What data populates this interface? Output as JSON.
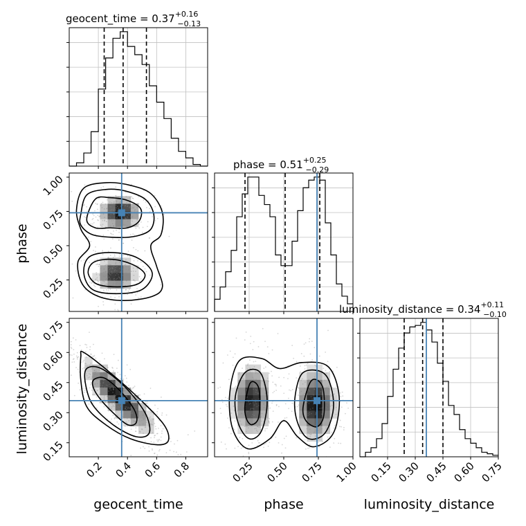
{
  "chart_data": {
    "type": "corner",
    "parameters": [
      "geocent_time",
      "phase",
      "luminosity_distance"
    ],
    "truths": {
      "geocent_time": 0.36,
      "phase": 0.74,
      "luminosity_distance": 0.36
    },
    "colors": {
      "truth": "#4682b4",
      "hist": "#000000",
      "grid": "#c0c0c0",
      "dashed": "#000000"
    },
    "grid": true,
    "marginals": {
      "geocent_time": {
        "title": {
          "name": "geocent_time",
          "value": "0.37",
          "plus": "+0.16",
          "minus": "−0.13"
        },
        "range": [
          0.0,
          0.95
        ],
        "quantiles": [
          0.24,
          0.37,
          0.53
        ],
        "bins": [
          0.0,
          0.05,
          0.1,
          0.15,
          0.2,
          0.25,
          0.3,
          0.35,
          0.4,
          0.45,
          0.5,
          0.55,
          0.6,
          0.65,
          0.7,
          0.75,
          0.8,
          0.85,
          0.9,
          0.95
        ],
        "counts": [
          0,
          2,
          8,
          21,
          47,
          66,
          78,
          82,
          73,
          68,
          62,
          49,
          39,
          29,
          17,
          9,
          5,
          1,
          0
        ]
      },
      "phase": {
        "title": {
          "name": "phase",
          "value": "0.51",
          "plus": "+0.25",
          "minus": "−0.29"
        },
        "range": [
          0.0,
          1.0
        ],
        "quantiles": [
          0.22,
          0.51,
          0.76
        ],
        "bins": [
          0.0,
          0.04,
          0.08,
          0.12,
          0.16,
          0.2,
          0.24,
          0.28,
          0.32,
          0.36,
          0.4,
          0.44,
          0.48,
          0.52,
          0.56,
          0.6,
          0.64,
          0.68,
          0.72,
          0.76,
          0.8,
          0.84,
          0.88,
          0.92,
          0.96,
          1.0
        ],
        "counts": [
          8,
          16,
          26,
          40,
          62,
          77,
          88,
          88,
          76,
          70,
          62,
          37,
          30,
          30,
          46,
          66,
          81,
          86,
          88,
          86,
          58,
          37,
          18,
          10,
          5
        ]
      },
      "luminosity_distance": {
        "title": {
          "name": "luminosity_distance",
          "value": "0.34",
          "plus": "+0.11",
          "minus": "−0.10"
        },
        "range": [
          0.0,
          0.75
        ],
        "quantiles": [
          0.24,
          0.34,
          0.45
        ],
        "bins": [
          0.0,
          0.03,
          0.06,
          0.09,
          0.12,
          0.15,
          0.18,
          0.21,
          0.24,
          0.27,
          0.3,
          0.33,
          0.36,
          0.39,
          0.42,
          0.45,
          0.48,
          0.51,
          0.54,
          0.57,
          0.6,
          0.63,
          0.66,
          0.69,
          0.72,
          0.75
        ],
        "counts": [
          0,
          3,
          6,
          12,
          22,
          40,
          58,
          72,
          82,
          86,
          87,
          89,
          84,
          76,
          62,
          50,
          34,
          28,
          18,
          12,
          9,
          6,
          3,
          2,
          1
        ]
      }
    },
    "axes": {
      "geocent_time": {
        "ticks": [
          0.2,
          0.4,
          0.6,
          0.8
        ],
        "tick_labels": [
          "0.2",
          "0.4",
          "0.6",
          "0.8"
        ],
        "label": "geocent_time"
      },
      "phase": {
        "ticks": [
          0.25,
          0.5,
          0.75,
          1.0
        ],
        "tick_labels": [
          "0.25",
          "0.50",
          "0.75",
          "1.00"
        ],
        "label": "phase"
      },
      "luminosity_distance": {
        "ticks": [
          0.15,
          0.3,
          0.45,
          0.6,
          0.75
        ],
        "tick_labels": [
          "0.15",
          "0.30",
          "0.45",
          "0.60",
          "0.75"
        ],
        "label": "luminosity_distance"
      }
    },
    "joint": [
      {
        "x": "geocent_time",
        "y": "phase",
        "x_range": [
          0.0,
          0.95
        ],
        "y_range": [
          0.02,
          1.03
        ],
        "blobs": [
          {
            "cx": 0.35,
            "cy": 0.74,
            "sx": 0.07,
            "sy": 0.06,
            "w": 1.0
          },
          {
            "cx": 0.32,
            "cy": 0.29,
            "sx": 0.07,
            "sy": 0.065,
            "w": 0.85
          }
        ],
        "contours": [
          [
            [
              0.12,
              0.69
            ],
            [
              0.18,
              0.84
            ],
            [
              0.28,
              0.85
            ],
            [
              0.4,
              0.83
            ],
            [
              0.49,
              0.77
            ],
            [
              0.48,
              0.68
            ],
            [
              0.4,
              0.63
            ],
            [
              0.28,
              0.63
            ],
            [
              0.18,
              0.63
            ]
          ],
          [
            [
              0.08,
              0.73
            ],
            [
              0.12,
              0.87
            ],
            [
              0.25,
              0.91
            ],
            [
              0.38,
              0.9
            ],
            [
              0.52,
              0.84
            ],
            [
              0.58,
              0.73
            ],
            [
              0.56,
              0.62
            ],
            [
              0.46,
              0.57
            ],
            [
              0.32,
              0.56
            ],
            [
              0.16,
              0.58
            ],
            [
              0.08,
              0.65
            ]
          ],
          [
            [
              0.05,
              0.76
            ],
            [
              0.1,
              0.92
            ],
            [
              0.26,
              0.96
            ],
            [
              0.42,
              0.94
            ],
            [
              0.56,
              0.88
            ],
            [
              0.64,
              0.74
            ],
            [
              0.63,
              0.58
            ],
            [
              0.56,
              0.5
            ],
            [
              0.6,
              0.35
            ],
            [
              0.64,
              0.2
            ],
            [
              0.57,
              0.13
            ],
            [
              0.38,
              0.1
            ],
            [
              0.2,
              0.13
            ],
            [
              0.09,
              0.22
            ],
            [
              0.06,
              0.38
            ],
            [
              0.14,
              0.5
            ],
            [
              0.08,
              0.62
            ]
          ],
          [
            [
              0.13,
              0.3
            ],
            [
              0.17,
              0.38
            ],
            [
              0.3,
              0.4
            ],
            [
              0.44,
              0.36
            ],
            [
              0.52,
              0.29
            ],
            [
              0.47,
              0.22
            ],
            [
              0.33,
              0.2
            ],
            [
              0.19,
              0.22
            ]
          ],
          [
            [
              0.1,
              0.3
            ],
            [
              0.14,
              0.42
            ],
            [
              0.3,
              0.45
            ],
            [
              0.47,
              0.41
            ],
            [
              0.57,
              0.3
            ],
            [
              0.5,
              0.18
            ],
            [
              0.32,
              0.15
            ],
            [
              0.16,
              0.18
            ]
          ]
        ]
      },
      {
        "x": "geocent_time",
        "y": "luminosity_distance",
        "x_range": [
          0.0,
          0.95
        ],
        "y_range": [
          0.08,
          0.77
        ],
        "blobs": [
          {
            "cx": 0.34,
            "cy": 0.38,
            "sx": 0.12,
            "sy": 0.09,
            "w": 1.0,
            "rho": -0.85
          }
        ],
        "contours": [
          [
            [
              0.18,
              0.47
            ],
            [
              0.25,
              0.47
            ],
            [
              0.36,
              0.4
            ],
            [
              0.45,
              0.31
            ],
            [
              0.46,
              0.25
            ],
            [
              0.4,
              0.24
            ],
            [
              0.3,
              0.3
            ],
            [
              0.2,
              0.38
            ],
            [
              0.16,
              0.44
            ]
          ],
          [
            [
              0.12,
              0.52
            ],
            [
              0.22,
              0.52
            ],
            [
              0.38,
              0.43
            ],
            [
              0.52,
              0.3
            ],
            [
              0.55,
              0.2
            ],
            [
              0.46,
              0.18
            ],
            [
              0.3,
              0.24
            ],
            [
              0.16,
              0.34
            ],
            [
              0.11,
              0.45
            ]
          ],
          [
            [
              0.08,
              0.58
            ],
            [
              0.1,
              0.6
            ],
            [
              0.28,
              0.5
            ],
            [
              0.48,
              0.37
            ],
            [
              0.65,
              0.24
            ],
            [
              0.68,
              0.16
            ],
            [
              0.6,
              0.14
            ],
            [
              0.42,
              0.17
            ],
            [
              0.25,
              0.24
            ],
            [
              0.12,
              0.33
            ],
            [
              0.08,
              0.46
            ]
          ]
        ]
      },
      {
        "x": "phase",
        "y": "luminosity_distance",
        "x_range": [
          0.0,
          1.0
        ],
        "y_range": [
          0.08,
          0.77
        ],
        "blobs": [
          {
            "cx": 0.27,
            "cy": 0.36,
            "sx": 0.07,
            "sy": 0.09,
            "w": 0.9
          },
          {
            "cx": 0.73,
            "cy": 0.34,
            "sx": 0.07,
            "sy": 0.09,
            "w": 1.0
          }
        ],
        "contours": [
          [
            [
              0.22,
              0.34
            ],
            [
              0.26,
              0.45
            ],
            [
              0.32,
              0.42
            ],
            [
              0.32,
              0.28
            ],
            [
              0.27,
              0.24
            ],
            [
              0.23,
              0.27
            ]
          ],
          [
            [
              0.15,
              0.38
            ],
            [
              0.22,
              0.5
            ],
            [
              0.33,
              0.5
            ],
            [
              0.38,
              0.36
            ],
            [
              0.34,
              0.21
            ],
            [
              0.25,
              0.17
            ],
            [
              0.17,
              0.25
            ]
          ],
          [
            [
              0.11,
              0.4
            ],
            [
              0.18,
              0.56
            ],
            [
              0.34,
              0.57
            ],
            [
              0.47,
              0.52
            ],
            [
              0.63,
              0.55
            ],
            [
              0.82,
              0.53
            ],
            [
              0.9,
              0.38
            ],
            [
              0.86,
              0.2
            ],
            [
              0.72,
              0.13
            ],
            [
              0.6,
              0.18
            ],
            [
              0.5,
              0.26
            ],
            [
              0.4,
              0.17
            ],
            [
              0.24,
              0.12
            ],
            [
              0.13,
              0.22
            ]
          ],
          [
            [
              0.64,
              0.33
            ],
            [
              0.7,
              0.46
            ],
            [
              0.78,
              0.43
            ],
            [
              0.79,
              0.29
            ],
            [
              0.74,
              0.23
            ],
            [
              0.66,
              0.26
            ]
          ],
          [
            [
              0.58,
              0.37
            ],
            [
              0.64,
              0.5
            ],
            [
              0.8,
              0.49
            ],
            [
              0.86,
              0.34
            ],
            [
              0.8,
              0.2
            ],
            [
              0.68,
              0.17
            ],
            [
              0.6,
              0.25
            ]
          ]
        ]
      }
    ]
  }
}
